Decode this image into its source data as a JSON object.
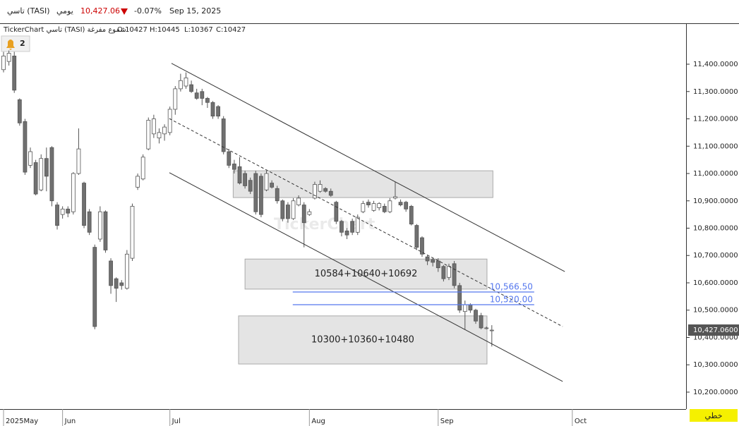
{
  "header": {
    "symbol": "تاسي (TASI)",
    "period": "يومي",
    "price": "10,427.06",
    "change": "-0.07%",
    "date": "Sep 15, 2025",
    "chart_name": "TickerChart تاسي (TASI) شموع مفرغة",
    "ohlc": [
      "O:10427",
      "H:10445",
      "L:10367",
      "C:10427"
    ],
    "alerts": "2",
    "watermark": "TickerChart"
  },
  "footer": {
    "style": "خطي"
  },
  "chart_data": {
    "type": "candlestick",
    "grid": false,
    "up_color": "#ffffff",
    "down_color": "#707070",
    "wick_color": "#555555",
    "xlim": [
      -0.66,
      127.2
    ],
    "ylim": [
      10138,
      11542
    ],
    "xticks": [
      {
        "value": 0,
        "label": "2025May"
      },
      {
        "value": 11,
        "label": "Jun"
      },
      {
        "value": 31,
        "label": "Jul"
      },
      {
        "value": 57,
        "label": "Aug"
      },
      {
        "value": 81,
        "label": "Sep"
      },
      {
        "value": 106,
        "label": "Oct"
      }
    ],
    "yticks": [
      {
        "value": 10200,
        "label": "10,200.0000"
      },
      {
        "value": 10300,
        "label": "10,300.0000"
      },
      {
        "value": 10400,
        "label": "10,400.0000"
      },
      {
        "value": 10500,
        "label": "10,500.0000"
      },
      {
        "value": 10600,
        "label": "10,600.0000"
      },
      {
        "value": 10700,
        "label": "10,700.0000"
      },
      {
        "value": 10800,
        "label": "10,800.0000"
      },
      {
        "value": 10900,
        "label": "10,900.0000"
      },
      {
        "value": 11000,
        "label": "11,000.0000"
      },
      {
        "value": 11100,
        "label": "11,100.0000"
      },
      {
        "value": 11200,
        "label": "11,200.0000"
      },
      {
        "value": 11300,
        "label": "11,300.0000"
      },
      {
        "value": 11400,
        "label": "11,400.0000"
      }
    ],
    "open": [
      11380,
      11410,
      11430,
      11270,
      11190,
      11030,
      11040,
      10940,
      11055,
      11095,
      10885,
      10850,
      10870,
      10860,
      11000,
      10965,
      10860,
      10730,
      10760,
      10860,
      10680,
      10615,
      10600,
      10580,
      10690,
      10950,
      10980,
      11090,
      11145,
      11130,
      11145,
      11150,
      11235,
      11310,
      11320,
      11325,
      11295,
      11300,
      11275,
      11260,
      11245,
      11200,
      11080,
      11035,
      11025,
      11000,
      10975,
      11000,
      10990,
      10940,
      10965,
      10945,
      10900,
      10885,
      10835,
      10885,
      10885,
      10850,
      10910,
      10935,
      10945,
      10935,
      10895,
      10825,
      10790,
      10825,
      10785,
      10860,
      10895,
      10865,
      10875,
      10880,
      10860,
      10910,
      10895,
      10895,
      10880,
      10810,
      10765,
      10695,
      10685,
      10680,
      10660,
      10620,
      10670,
      10590,
      10495,
      10520,
      10500,
      10480,
      10435,
      10427
    ],
    "high": [
      11445,
      11450,
      11445,
      11275,
      11200,
      11095,
      11050,
      11070,
      11095,
      11100,
      10895,
      10880,
      10880,
      11005,
      11165,
      10970,
      10870,
      10740,
      10880,
      10865,
      10690,
      10620,
      10610,
      10720,
      10890,
      11000,
      11070,
      11205,
      11215,
      11165,
      11180,
      11245,
      11320,
      11365,
      11370,
      11340,
      11310,
      11310,
      11280,
      11265,
      11250,
      11210,
      11090,
      11050,
      11060,
      11010,
      10985,
      11010,
      11000,
      11010,
      10975,
      10955,
      10905,
      10895,
      10910,
      10920,
      10895,
      10870,
      10970,
      10975,
      10950,
      10945,
      10900,
      10830,
      10800,
      10835,
      10850,
      10900,
      10905,
      10900,
      10895,
      10890,
      10910,
      10970,
      10905,
      10900,
      10885,
      10815,
      10770,
      10700,
      10690,
      10690,
      10665,
      10670,
      10680,
      10600,
      10535,
      10525,
      10505,
      10490,
      10440,
      10445
    ],
    "low": [
      11370,
      11395,
      11295,
      11175,
      10995,
      11020,
      10920,
      10935,
      10935,
      10880,
      10795,
      10835,
      10840,
      10850,
      10995,
      10800,
      10775,
      10430,
      10750,
      10710,
      10560,
      10530,
      10575,
      10575,
      10680,
      10940,
      10975,
      11085,
      11130,
      11110,
      11120,
      11140,
      11215,
      11300,
      11310,
      11295,
      11270,
      11250,
      11240,
      11200,
      11200,
      11070,
      11020,
      11000,
      10960,
      10945,
      10925,
      10850,
      10840,
      10935,
      10945,
      10890,
      10825,
      10820,
      10830,
      10880,
      10730,
      10845,
      10905,
      10930,
      10930,
      10915,
      10815,
      10770,
      10760,
      10775,
      10775,
      10855,
      10875,
      10860,
      10865,
      10855,
      10855,
      10905,
      10880,
      10860,
      10810,
      10720,
      10695,
      10665,
      10660,
      10640,
      10605,
      10610,
      10580,
      10490,
      10430,
      10490,
      10450,
      10430,
      10430,
      10367
    ],
    "close": [
      11430,
      11440,
      11305,
      11185,
      11005,
      11080,
      10925,
      11055,
      10990,
      10900,
      10810,
      10870,
      10855,
      11000,
      11090,
      10810,
      10785,
      10440,
      10860,
      10720,
      10590,
      10580,
      10590,
      10705,
      10880,
      10990,
      11060,
      11195,
      11200,
      11150,
      11170,
      11235,
      11310,
      11340,
      11350,
      11300,
      11275,
      11275,
      11260,
      11210,
      11210,
      11080,
      11030,
      11015,
      10965,
      10955,
      10935,
      10860,
      10850,
      11000,
      10950,
      10900,
      10835,
      10835,
      10900,
      10910,
      10820,
      10860,
      10960,
      10960,
      10935,
      10920,
      10825,
      10785,
      10775,
      10785,
      10840,
      10890,
      10885,
      10890,
      10890,
      10860,
      10900,
      10915,
      10885,
      10870,
      10815,
      10730,
      10705,
      10680,
      10675,
      10655,
      10615,
      10660,
      10590,
      10500,
      10520,
      10500,
      10460,
      10435,
      10435,
      10427
    ],
    "last_price": {
      "value": 10427.06,
      "label": "10,427.0600"
    },
    "zones": [
      {
        "low": 10912,
        "high": 11010,
        "x1": 42.8,
        "x2": 91.2
      },
      {
        "low": 10577,
        "high": 10687,
        "x1": 45,
        "x2": 90.1,
        "label": "10584+10640+10692"
      },
      {
        "low": 10303,
        "high": 10479,
        "x1": 43.8,
        "x2": 90.1,
        "label": "10300+10360+10480"
      }
    ],
    "hlines": [
      {
        "value": 10566.5,
        "label": "10,566.50",
        "x1": 53.9,
        "x2": 98.9,
        "color": "#5577ee"
      },
      {
        "value": 10520,
        "label": "10,520.00",
        "x1": 53.9,
        "x2": 98.9,
        "color": "#5577ee"
      }
    ],
    "trendlines": [
      {
        "x1": 31.3,
        "y1": 11403,
        "x2": 104.6,
        "y2": 10641,
        "dashed": false
      },
      {
        "x1": 30.9,
        "y1": 11003,
        "x2": 104.2,
        "y2": 10239,
        "dashed": false
      },
      {
        "x1": 30.9,
        "y1": 11201,
        "x2": 104.2,
        "y2": 10440,
        "dashed": true
      }
    ]
  }
}
